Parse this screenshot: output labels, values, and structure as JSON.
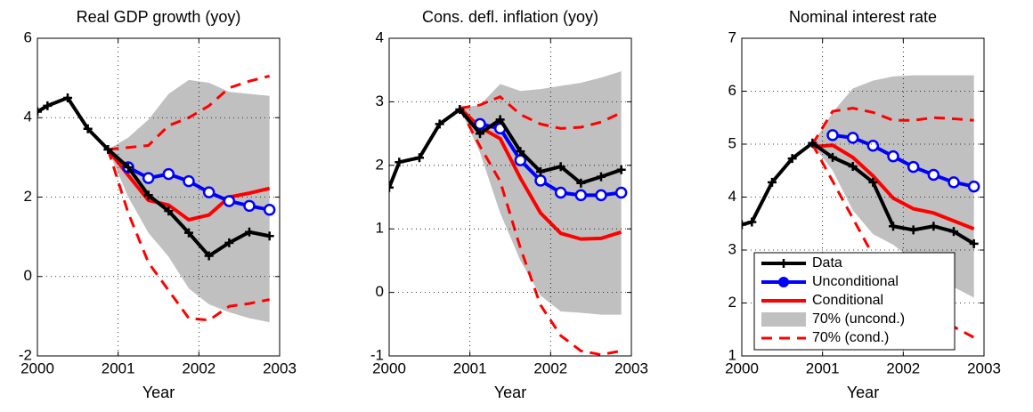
{
  "chart_data": [
    {
      "type": "line",
      "title": "Real GDP growth (yoy)",
      "x_label": "Year",
      "x": [
        2000.0,
        2000.125,
        2000.375,
        2000.625,
        2000.875,
        2001.125,
        2001.375,
        2001.625,
        2001.875,
        2002.125,
        2002.375,
        2002.625,
        2002.875
      ],
      "xlim": [
        2000,
        2003
      ],
      "xticks": [
        2000,
        2001,
        2002,
        2003
      ],
      "ylim": [
        -2,
        6
      ],
      "yticks": [
        -2,
        0,
        2,
        4,
        6
      ],
      "grid": true,
      "series": [
        {
          "kind": "band",
          "color": "#c0c0c0",
          "upper": [
            null,
            null,
            null,
            null,
            3.2,
            3.5,
            3.95,
            4.6,
            4.95,
            4.88,
            4.65,
            4.6,
            4.55
          ],
          "lower": [
            null,
            null,
            null,
            null,
            3.2,
            2.0,
            1.1,
            0.5,
            -0.3,
            -0.7,
            -0.9,
            -1.05,
            -1.15
          ]
        },
        {
          "kind": "dashed",
          "color": "#ff0000",
          "upper": [
            null,
            null,
            null,
            null,
            3.2,
            3.25,
            3.3,
            3.8,
            4.0,
            4.3,
            4.75,
            4.92,
            5.05
          ],
          "lower": [
            null,
            null,
            null,
            null,
            3.2,
            1.6,
            0.35,
            -0.35,
            -1.05,
            -1.1,
            -0.75,
            -0.68,
            -0.58
          ]
        },
        {
          "kind": "line",
          "color": "#ff0000",
          "values": [
            null,
            null,
            null,
            null,
            3.2,
            2.55,
            1.92,
            1.8,
            1.43,
            1.55,
            2.0,
            2.1,
            2.22
          ]
        },
        {
          "kind": "circles",
          "color": "#0000ff",
          "values": [
            null,
            null,
            null,
            null,
            null,
            2.75,
            2.48,
            2.58,
            2.4,
            2.12,
            1.9,
            1.78,
            1.68
          ]
        },
        {
          "kind": "plus",
          "color": "#000000",
          "values": [
            4.15,
            4.3,
            4.5,
            3.72,
            3.2,
            2.75,
            2.05,
            1.65,
            1.1,
            0.52,
            0.85,
            1.12,
            1.02
          ]
        }
      ]
    },
    {
      "type": "line",
      "title": "Cons. defl. inflation (yoy)",
      "x_label": "Year",
      "x": [
        2000.0,
        2000.125,
        2000.375,
        2000.625,
        2000.875,
        2001.125,
        2001.375,
        2001.625,
        2001.875,
        2002.125,
        2002.375,
        2002.625,
        2002.875
      ],
      "xlim": [
        2000,
        2003
      ],
      "xticks": [
        2000,
        2001,
        2002,
        2003
      ],
      "ylim": [
        -1,
        4
      ],
      "yticks": [
        -1,
        0,
        1,
        2,
        3,
        4
      ],
      "grid": true,
      "series": [
        {
          "kind": "band",
          "color": "#c0c0c0",
          "upper": [
            null,
            null,
            null,
            null,
            2.9,
            2.95,
            3.28,
            3.17,
            3.2,
            3.25,
            3.3,
            3.38,
            3.48
          ],
          "lower": [
            null,
            null,
            null,
            null,
            2.9,
            2.2,
            1.25,
            0.5,
            -0.05,
            -0.3,
            -0.32,
            -0.35,
            -0.35
          ]
        },
        {
          "kind": "dashed",
          "color": "#ff0000",
          "upper": [
            null,
            null,
            null,
            null,
            2.9,
            2.95,
            3.08,
            2.8,
            2.65,
            2.58,
            2.6,
            2.68,
            2.83
          ],
          "lower": [
            null,
            null,
            null,
            null,
            2.9,
            2.3,
            1.75,
            0.7,
            -0.2,
            -0.68,
            -0.92,
            -0.98,
            -0.92
          ]
        },
        {
          "kind": "line",
          "color": "#ff0000",
          "values": [
            null,
            null,
            null,
            null,
            2.9,
            2.6,
            2.42,
            1.8,
            1.25,
            0.93,
            0.84,
            0.85,
            0.95
          ]
        },
        {
          "kind": "circles",
          "color": "#0000ff",
          "values": [
            null,
            null,
            null,
            null,
            null,
            2.65,
            2.58,
            2.08,
            1.76,
            1.57,
            1.53,
            1.53,
            1.57
          ]
        },
        {
          "kind": "plus",
          "color": "#000000",
          "values": [
            1.65,
            2.05,
            2.12,
            2.65,
            2.88,
            2.5,
            2.72,
            2.22,
            1.9,
            1.98,
            1.72,
            1.82,
            1.93
          ]
        }
      ]
    },
    {
      "type": "line",
      "title": "Nominal interest rate",
      "x_label": "Year",
      "x": [
        2000.0,
        2000.125,
        2000.375,
        2000.625,
        2000.875,
        2001.125,
        2001.375,
        2001.625,
        2001.875,
        2002.125,
        2002.375,
        2002.625,
        2002.875
      ],
      "xlim": [
        2000,
        2003
      ],
      "xticks": [
        2000,
        2001,
        2002,
        2003
      ],
      "ylim": [
        1,
        7
      ],
      "yticks": [
        1,
        2,
        3,
        4,
        5,
        6,
        7
      ],
      "grid": true,
      "series": [
        {
          "kind": "band",
          "color": "#c0c0c0",
          "upper": [
            null,
            null,
            null,
            null,
            5.0,
            5.6,
            6.05,
            6.2,
            6.28,
            6.3,
            6.3,
            6.3,
            6.3
          ],
          "lower": [
            null,
            null,
            null,
            null,
            5.0,
            4.5,
            3.75,
            3.3,
            3.1,
            2.8,
            2.55,
            2.3,
            2.1
          ]
        },
        {
          "kind": "dashed",
          "color": "#ff0000",
          "upper": [
            null,
            null,
            null,
            null,
            5.0,
            5.62,
            5.68,
            5.6,
            5.45,
            5.45,
            5.5,
            5.48,
            5.45
          ],
          "lower": [
            null,
            null,
            null,
            null,
            5.0,
            4.3,
            3.6,
            2.9,
            2.3,
            1.95,
            1.7,
            1.55,
            1.35
          ]
        },
        {
          "kind": "line",
          "color": "#ff0000",
          "values": [
            null,
            null,
            null,
            null,
            4.95,
            4.98,
            4.75,
            4.4,
            3.98,
            3.78,
            3.7,
            3.55,
            3.4
          ]
        },
        {
          "kind": "circles",
          "color": "#0000ff",
          "values": [
            null,
            null,
            null,
            null,
            null,
            5.17,
            5.12,
            4.97,
            4.77,
            4.57,
            4.42,
            4.28,
            4.2
          ]
        },
        {
          "kind": "plus",
          "color": "#000000",
          "values": [
            3.48,
            3.53,
            4.28,
            4.73,
            5.02,
            4.75,
            4.58,
            4.28,
            3.45,
            3.38,
            3.45,
            3.35,
            3.12
          ]
        }
      ],
      "legend": "lower left",
      "legend_entries": [
        {
          "name": "Data",
          "kind": "plus",
          "color": "#000000"
        },
        {
          "name": "Unconditional",
          "kind": "circles",
          "color": "#0000ff"
        },
        {
          "name": "Conditional",
          "kind": "line",
          "color": "#ff0000"
        },
        {
          "name": "70% (uncond.)",
          "kind": "band",
          "color": "#c0c0c0"
        },
        {
          "name": "70% (cond.)",
          "kind": "dashed",
          "color": "#ff0000"
        }
      ]
    }
  ]
}
